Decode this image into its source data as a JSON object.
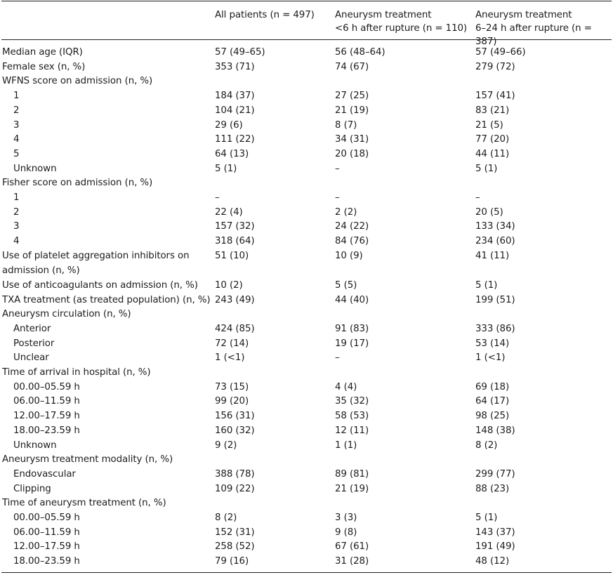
{
  "header": {
    "col1": "All patients (n = 497)",
    "col2_line1": "Aneurysm treatment",
    "col2_line2": "<6 h after rupture (n = 110)",
    "col3_line1": "Aneurysm treatment",
    "col3_line2": "6–24 h after rupture (n = 387)"
  },
  "rows": [
    {
      "label": "Median age (IQR)",
      "all": "57 (49–65)",
      "lt6": "56 (48–64)",
      "h6_24": "57 (49–66)"
    },
    {
      "label": "Female sex (n, %)",
      "all": "353 (71)",
      "lt6": "74 (67)",
      "h6_24": "279 (72)"
    },
    {
      "label": "WFNS score on admission (n, %)",
      "all": "",
      "lt6": "",
      "h6_24": ""
    },
    {
      "label": "1",
      "all": "184 (37)",
      "lt6": "27 (25)",
      "h6_24": "157 (41)"
    },
    {
      "label": "2",
      "all": "104 (21)",
      "lt6": "21 (19)",
      "h6_24": "83 (21)"
    },
    {
      "label": "3",
      "all": "29 (6)",
      "lt6": "8 (7)",
      "h6_24": "21 (5)"
    },
    {
      "label": "4",
      "all": "111 (22)",
      "lt6": "34 (31)",
      "h6_24": "77 (20)"
    },
    {
      "label": "5",
      "all": "64 (13)",
      "lt6": "20 (18)",
      "h6_24": "44 (11)"
    },
    {
      "label": "Unknown",
      "all": "5 (1)",
      "lt6": "–",
      "h6_24": "5 (1)"
    },
    {
      "label": "Fisher score on admission (n, %)",
      "all": "",
      "lt6": "",
      "h6_24": ""
    },
    {
      "label": "1",
      "all": "–",
      "lt6": "–",
      "h6_24": "–"
    },
    {
      "label": "2",
      "all": "22 (4)",
      "lt6": "2 (2)",
      "h6_24": "20 (5)"
    },
    {
      "label": "3",
      "all": "157 (32)",
      "lt6": "24 (22)",
      "h6_24": "133 (34)"
    },
    {
      "label": "4",
      "all": "318 (64)",
      "lt6": "84 (76)",
      "h6_24": "234 (60)"
    },
    {
      "label": "Use of platelet aggregation inhibitors on admission (n, %)",
      "all": "51 (10)",
      "lt6": "10 (9)",
      "h6_24": "41 (11)"
    },
    {
      "label": "Use of anticoagulants on admission (n, %)",
      "all": "10 (2)",
      "lt6": "5 (5)",
      "h6_24": "5 (1)"
    },
    {
      "label": "TXA treatment (as treated population) (n, %)",
      "all": "243 (49)",
      "lt6": "44 (40)",
      "h6_24": "199 (51)"
    },
    {
      "label": "Aneurysm circulation (n, %)",
      "all": "",
      "lt6": "",
      "h6_24": ""
    },
    {
      "label": "Anterior",
      "all": "424 (85)",
      "lt6": "91 (83)",
      "h6_24": "333 (86)"
    },
    {
      "label": "Posterior",
      "all": "72 (14)",
      "lt6": "19 (17)",
      "h6_24": "53 (14)"
    },
    {
      "label": "Unclear",
      "all": "1 (<1)",
      "lt6": "–",
      "h6_24": "1 (<1)"
    },
    {
      "label": "Time of arrival in hospital (n, %)",
      "all": "",
      "lt6": "",
      "h6_24": ""
    },
    {
      "label": "00.00–05.59 h",
      "all": "73 (15)",
      "lt6": "4 (4)",
      "h6_24": "69 (18)"
    },
    {
      "label": "06.00–11.59 h",
      "all": "99 (20)",
      "lt6": "35 (32)",
      "h6_24": "64 (17)"
    },
    {
      "label": "12.00–17.59 h",
      "all": "156 (31)",
      "lt6": "58 (53)",
      "h6_24": "98 (25)"
    },
    {
      "label": "18.00–23.59 h",
      "all": "160 (32)",
      "lt6": "12 (11)",
      "h6_24": "148 (38)"
    },
    {
      "label": "Unknown",
      "all": "9 (2)",
      "lt6": "1 (1)",
      "h6_24": "8 (2)"
    },
    {
      "label": "Aneurysm treatment modality (n, %)",
      "all": "",
      "lt6": "",
      "h6_24": ""
    },
    {
      "label": "Endovascular",
      "all": "388 (78)",
      "lt6": "89 (81)",
      "h6_24": "299 (77)"
    },
    {
      "label": "Clipping",
      "all": "109 (22)",
      "lt6": "21 (19)",
      "h6_24": "88 (23)"
    },
    {
      "label": "Time of aneurysm treatment (n, %)",
      "all": "",
      "lt6": "",
      "h6_24": ""
    },
    {
      "label": "00.00–05.59 h",
      "all": "8 (2)",
      "lt6": "3 (3)",
      "h6_24": "5 (1)"
    },
    {
      "label": "06.00–11.59 h",
      "all": "152 (31)",
      "lt6": "9 (8)",
      "h6_24": "143 (37)"
    },
    {
      "label": "12.00–17.59 h",
      "all": "258 (52)",
      "lt6": "67 (61)",
      "h6_24": "191 (49)"
    },
    {
      "label": "18.00–23.59 h",
      "all": "79 (16)",
      "lt6": "31 (28)",
      "h6_24": "48 (12)"
    }
  ]
}
